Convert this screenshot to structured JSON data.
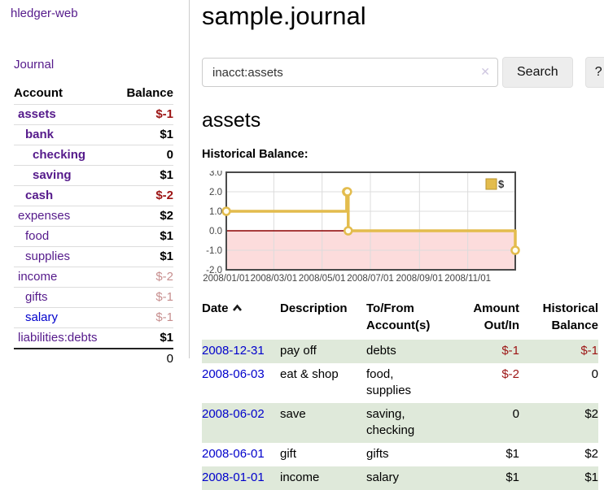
{
  "app": {
    "title": "hledger-web"
  },
  "sidebar": {
    "journal_link": "Journal",
    "table": {
      "account_header": "Account",
      "balance_header": "Balance",
      "rows": [
        {
          "name": "assets",
          "balance": "$-1"
        },
        {
          "name": "bank",
          "balance": "$1"
        },
        {
          "name": "checking",
          "balance": "0"
        },
        {
          "name": "saving",
          "balance": "$1"
        },
        {
          "name": "cash",
          "balance": "$-2"
        },
        {
          "name": "expenses",
          "balance": "$2"
        },
        {
          "name": "food",
          "balance": "$1"
        },
        {
          "name": "supplies",
          "balance": "$1"
        },
        {
          "name": "income",
          "balance": "$-2"
        },
        {
          "name": "gifts",
          "balance": "$-1"
        },
        {
          "name": "salary",
          "balance": "$-1"
        },
        {
          "name": "liabilities:debts",
          "balance": "$1"
        }
      ],
      "total": "0"
    }
  },
  "main": {
    "title": "sample.journal",
    "search": {
      "value": "inacct:assets",
      "placeholder": "",
      "clear_icon": "✕",
      "button_label": "Search",
      "help_label": "?"
    },
    "account_heading": "assets",
    "chart_label": "Historical Balance:"
  },
  "chart_data": {
    "type": "line",
    "step": true,
    "title": "Historical Balance",
    "series": [
      {
        "name": "$",
        "color": "#e3bc4d",
        "points": [
          [
            "2008-01-01",
            1
          ],
          [
            "2008-06-01",
            2
          ],
          [
            "2008-06-02",
            2
          ],
          [
            "2008-06-03",
            0
          ],
          [
            "2008-12-31",
            -1
          ]
        ]
      }
    ],
    "x_ticks": [
      "2008/01/01",
      "2008/03/01",
      "2008/05/01",
      "2008/07/01",
      "2008/09/01",
      "2008/11/01"
    ],
    "y_ticks": [
      3,
      2,
      1,
      0,
      -1,
      -2
    ],
    "ylim": [
      -2,
      3
    ],
    "xlim": [
      "2008-01-01",
      "2008-12-31"
    ],
    "grid": true,
    "negative_region_color": "#fcdcdc",
    "zero_line_color": "#8b0000",
    "legend": {
      "label": "$",
      "position": "top-right"
    }
  },
  "register": {
    "headers": {
      "date": "Date",
      "description": "Description",
      "to_from": "To/From\nAccount(s)",
      "amount": "Amount\nOut/In",
      "balance": "Historical\nBalance"
    },
    "rows": [
      {
        "date": "2008-12-31",
        "description": "pay off",
        "accounts": "debts",
        "amount": "$-1",
        "balance": "$-1"
      },
      {
        "date": "2008-06-03",
        "description": "eat & shop",
        "accounts": "food, supplies",
        "amount": "$-2",
        "balance": "0"
      },
      {
        "date": "2008-06-02",
        "description": "save",
        "accounts": "saving, checking",
        "amount": "0",
        "balance": "$2"
      },
      {
        "date": "2008-06-01",
        "description": "gift",
        "accounts": "gifts",
        "amount": "$1",
        "balance": "$2"
      },
      {
        "date": "2008-01-01",
        "description": "income",
        "accounts": "salary",
        "amount": "$1",
        "balance": "$1"
      }
    ]
  },
  "colors": {
    "purple": "#551a8b",
    "blue": "#0000cc",
    "neg": "#9c1414",
    "rowgreen": "#dfe9da",
    "gold": "#e3bc4d",
    "pink": "#fcdcdc",
    "zero": "#8b0000"
  }
}
